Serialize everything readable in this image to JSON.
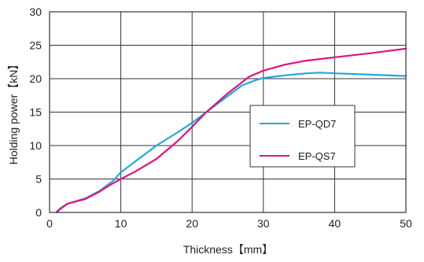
{
  "chart_data": {
    "type": "line",
    "title": "",
    "xlabel": "Thickness【mm】",
    "ylabel": "Holding power【kN】",
    "xlim": [
      0,
      50
    ],
    "ylim": [
      0,
      30
    ],
    "xticks": [
      "0",
      "10",
      "20",
      "30",
      "40",
      "50"
    ],
    "yticks": [
      "0",
      "5",
      "10",
      "15",
      "20",
      "25",
      "30"
    ],
    "grid": true,
    "legend_position": "center-right",
    "series": [
      {
        "name": "EP-QD7",
        "color": "#1fa8e0",
        "points": [
          [
            1,
            0.1
          ],
          [
            1.5,
            0.6
          ],
          [
            2.5,
            1.3
          ],
          [
            5,
            2.1
          ],
          [
            7,
            3.2
          ],
          [
            8,
            4.0
          ],
          [
            9,
            4.8
          ],
          [
            10,
            6.0
          ],
          [
            12,
            7.6
          ],
          [
            15,
            10.0
          ],
          [
            18,
            12.0
          ],
          [
            20,
            13.4
          ],
          [
            22,
            15.0
          ],
          [
            25,
            17.4
          ],
          [
            27,
            19.0
          ],
          [
            29,
            19.8
          ],
          [
            30,
            20.1
          ],
          [
            33,
            20.5
          ],
          [
            36,
            20.8
          ],
          [
            38,
            20.9
          ],
          [
            40,
            20.8
          ],
          [
            45,
            20.6
          ],
          [
            50,
            20.4
          ]
        ]
      },
      {
        "name": "EP-QS7",
        "color": "#e0137f",
        "points": [
          [
            1,
            0.0
          ],
          [
            1.5,
            0.5
          ],
          [
            2.5,
            1.3
          ],
          [
            5,
            2.0
          ],
          [
            7,
            3.1
          ],
          [
            8,
            3.8
          ],
          [
            9,
            4.4
          ],
          [
            10,
            5.0
          ],
          [
            12,
            6.1
          ],
          [
            15,
            8.0
          ],
          [
            18,
            10.7
          ],
          [
            20,
            12.8
          ],
          [
            22,
            15.0
          ],
          [
            25,
            17.8
          ],
          [
            28,
            20.3
          ],
          [
            30,
            21.2
          ],
          [
            33,
            22.1
          ],
          [
            36,
            22.7
          ],
          [
            40,
            23.2
          ],
          [
            45,
            23.8
          ],
          [
            50,
            24.5
          ]
        ]
      }
    ]
  }
}
